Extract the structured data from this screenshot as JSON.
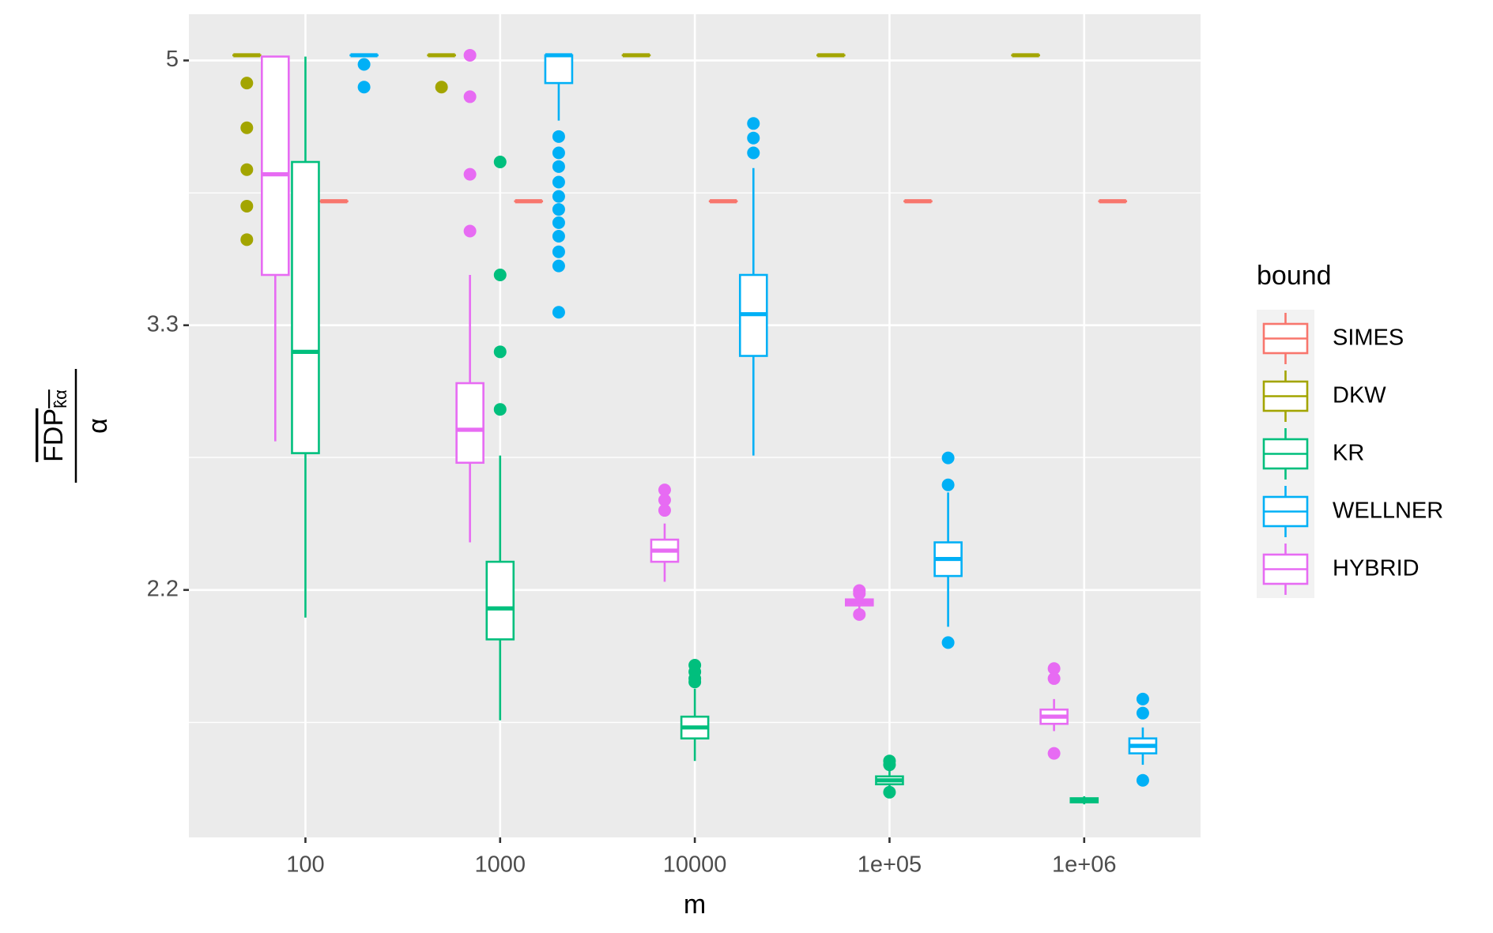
{
  "chart_data": {
    "type": "box",
    "xlabel": "m",
    "ylabel": {
      "numerator": "FDP",
      "subscript": "k̂α",
      "denominator": "α"
    },
    "legend_title": "bound",
    "xscale": "log",
    "yscale": "log",
    "grid": true,
    "xlim": [
      25.2,
      3960000
    ],
    "xticks": [
      100,
      1000,
      10000,
      {
        "value": 100000,
        "label": "1e+05"
      },
      {
        "value": 1000000,
        "label": "1e+06"
      }
    ],
    "ylim": [
      1.521,
      5.367
    ],
    "yticks": [
      5,
      {
        "value": 3.333,
        "label": "3.3"
      },
      {
        "value": 2.222,
        "label": "2.2"
      }
    ],
    "minor_yticks": [
      4.082,
      2.722,
      1.814
    ],
    "series": [
      {
        "name": "SIMES",
        "color": "#F8766D",
        "x": [
          140,
          1400,
          14000,
          140000,
          1400000
        ],
        "boxes": [
          {
            "min": 4.03,
            "q1": 4.03,
            "median": 4.03,
            "q3": 4.03,
            "max": 4.03,
            "outliers": []
          },
          {
            "min": 4.03,
            "q1": 4.03,
            "median": 4.03,
            "q3": 4.03,
            "max": 4.03,
            "outliers": []
          },
          {
            "min": 4.03,
            "q1": 4.03,
            "median": 4.03,
            "q3": 4.03,
            "max": 4.03,
            "outliers": []
          },
          {
            "min": 4.03,
            "q1": 4.03,
            "median": 4.03,
            "q3": 4.03,
            "max": 4.03,
            "outliers": []
          },
          {
            "min": 4.03,
            "q1": 4.03,
            "median": 4.03,
            "q3": 4.03,
            "max": 4.03,
            "outliers": []
          }
        ]
      },
      {
        "name": "DKW",
        "color": "#A3A500",
        "x": [
          50,
          500,
          5000,
          50000,
          500000
        ],
        "boxes": [
          {
            "min": 5.04,
            "q1": 5.04,
            "median": 5.04,
            "q3": 5.04,
            "max": 5.04,
            "outliers": [
              4.83,
              4.51,
              4.23,
              4.0,
              3.8
            ]
          },
          {
            "min": 5.04,
            "q1": 5.04,
            "median": 5.04,
            "q3": 5.04,
            "max": 5.04,
            "outliers": [
              4.8
            ]
          },
          {
            "min": 5.04,
            "q1": 5.04,
            "median": 5.04,
            "q3": 5.04,
            "max": 5.04,
            "outliers": []
          },
          {
            "min": 5.04,
            "q1": 5.04,
            "median": 5.04,
            "q3": 5.04,
            "max": 5.04,
            "outliers": []
          },
          {
            "min": 5.04,
            "q1": 5.04,
            "median": 5.04,
            "q3": 5.04,
            "max": 5.04,
            "outliers": []
          }
        ]
      },
      {
        "name": "KR",
        "color": "#00BF7D",
        "x": [
          100,
          1000,
          10000,
          100000,
          1000000
        ],
        "boxes": [
          {
            "min": 2.13,
            "q1": 2.74,
            "median": 3.2,
            "q3": 4.28,
            "max": 5.03,
            "outliers": []
          },
          {
            "min": 1.82,
            "q1": 2.06,
            "median": 2.16,
            "q3": 2.32,
            "max": 2.73,
            "outliers": [
              4.28,
              3.6,
              3.2,
              2.93
            ]
          },
          {
            "min": 1.71,
            "q1": 1.77,
            "median": 1.8,
            "q3": 1.83,
            "max": 1.91,
            "outliers": [
              1.98,
              1.96,
              1.94,
              1.93
            ]
          },
          {
            "min": 1.64,
            "q1": 1.65,
            "median": 1.66,
            "q3": 1.67,
            "max": 1.69,
            "outliers": [
              1.71,
              1.7,
              1.63
            ]
          },
          {
            "min": 1.6,
            "q1": 1.605,
            "median": 1.61,
            "q3": 1.615,
            "max": 1.62,
            "outliers": []
          }
        ]
      },
      {
        "name": "WELLNER",
        "color": "#00B0F6",
        "x": [
          200,
          2000,
          20000,
          200000,
          2000000
        ],
        "boxes": [
          {
            "min": 5.04,
            "q1": 5.04,
            "median": 5.04,
            "q3": 5.04,
            "max": 5.04,
            "outliers": [
              4.97,
              4.8
            ]
          },
          {
            "min": 4.56,
            "q1": 4.83,
            "median": 5.04,
            "q3": 5.04,
            "max": 5.04,
            "outliers": [
              4.45,
              4.34,
              4.25,
              4.15,
              4.06,
              3.98,
              3.9,
              3.82,
              3.73,
              3.65,
              3.4
            ]
          },
          {
            "min": 2.73,
            "q1": 3.18,
            "median": 3.39,
            "q3": 3.6,
            "max": 4.24,
            "outliers": [
              4.54,
              4.44,
              4.34
            ]
          },
          {
            "min": 2.1,
            "q1": 2.27,
            "median": 2.33,
            "q3": 2.39,
            "max": 2.58,
            "outliers": [
              2.72,
              2.61,
              2.05
            ]
          },
          {
            "min": 1.7,
            "q1": 1.73,
            "median": 1.75,
            "q3": 1.77,
            "max": 1.8,
            "outliers": [
              1.88,
              1.84,
              1.66
            ]
          }
        ]
      },
      {
        "name": "HYBRID",
        "color": "#E76BF3",
        "x": [
          70,
          700,
          7000,
          70000,
          700000
        ],
        "boxes": [
          {
            "min": 2.79,
            "q1": 3.6,
            "median": 4.2,
            "q3": 5.03,
            "max": 5.03,
            "outliers": []
          },
          {
            "min": 2.39,
            "q1": 2.7,
            "median": 2.84,
            "q3": 3.05,
            "max": 3.6,
            "outliers": [
              5.04,
              4.73,
              4.2,
              3.85
            ]
          },
          {
            "min": 2.25,
            "q1": 2.32,
            "median": 2.36,
            "q3": 2.4,
            "max": 2.46,
            "outliers": [
              2.59,
              2.55,
              2.51
            ]
          },
          {
            "min": 2.16,
            "q1": 2.17,
            "median": 2.18,
            "q3": 2.19,
            "max": 2.2,
            "outliers": [
              2.22,
              2.21,
              2.14
            ]
          },
          {
            "min": 1.79,
            "q1": 1.81,
            "median": 1.83,
            "q3": 1.85,
            "max": 1.88,
            "outliers": [
              1.97,
              1.94,
              1.73
            ]
          }
        ]
      }
    ]
  }
}
